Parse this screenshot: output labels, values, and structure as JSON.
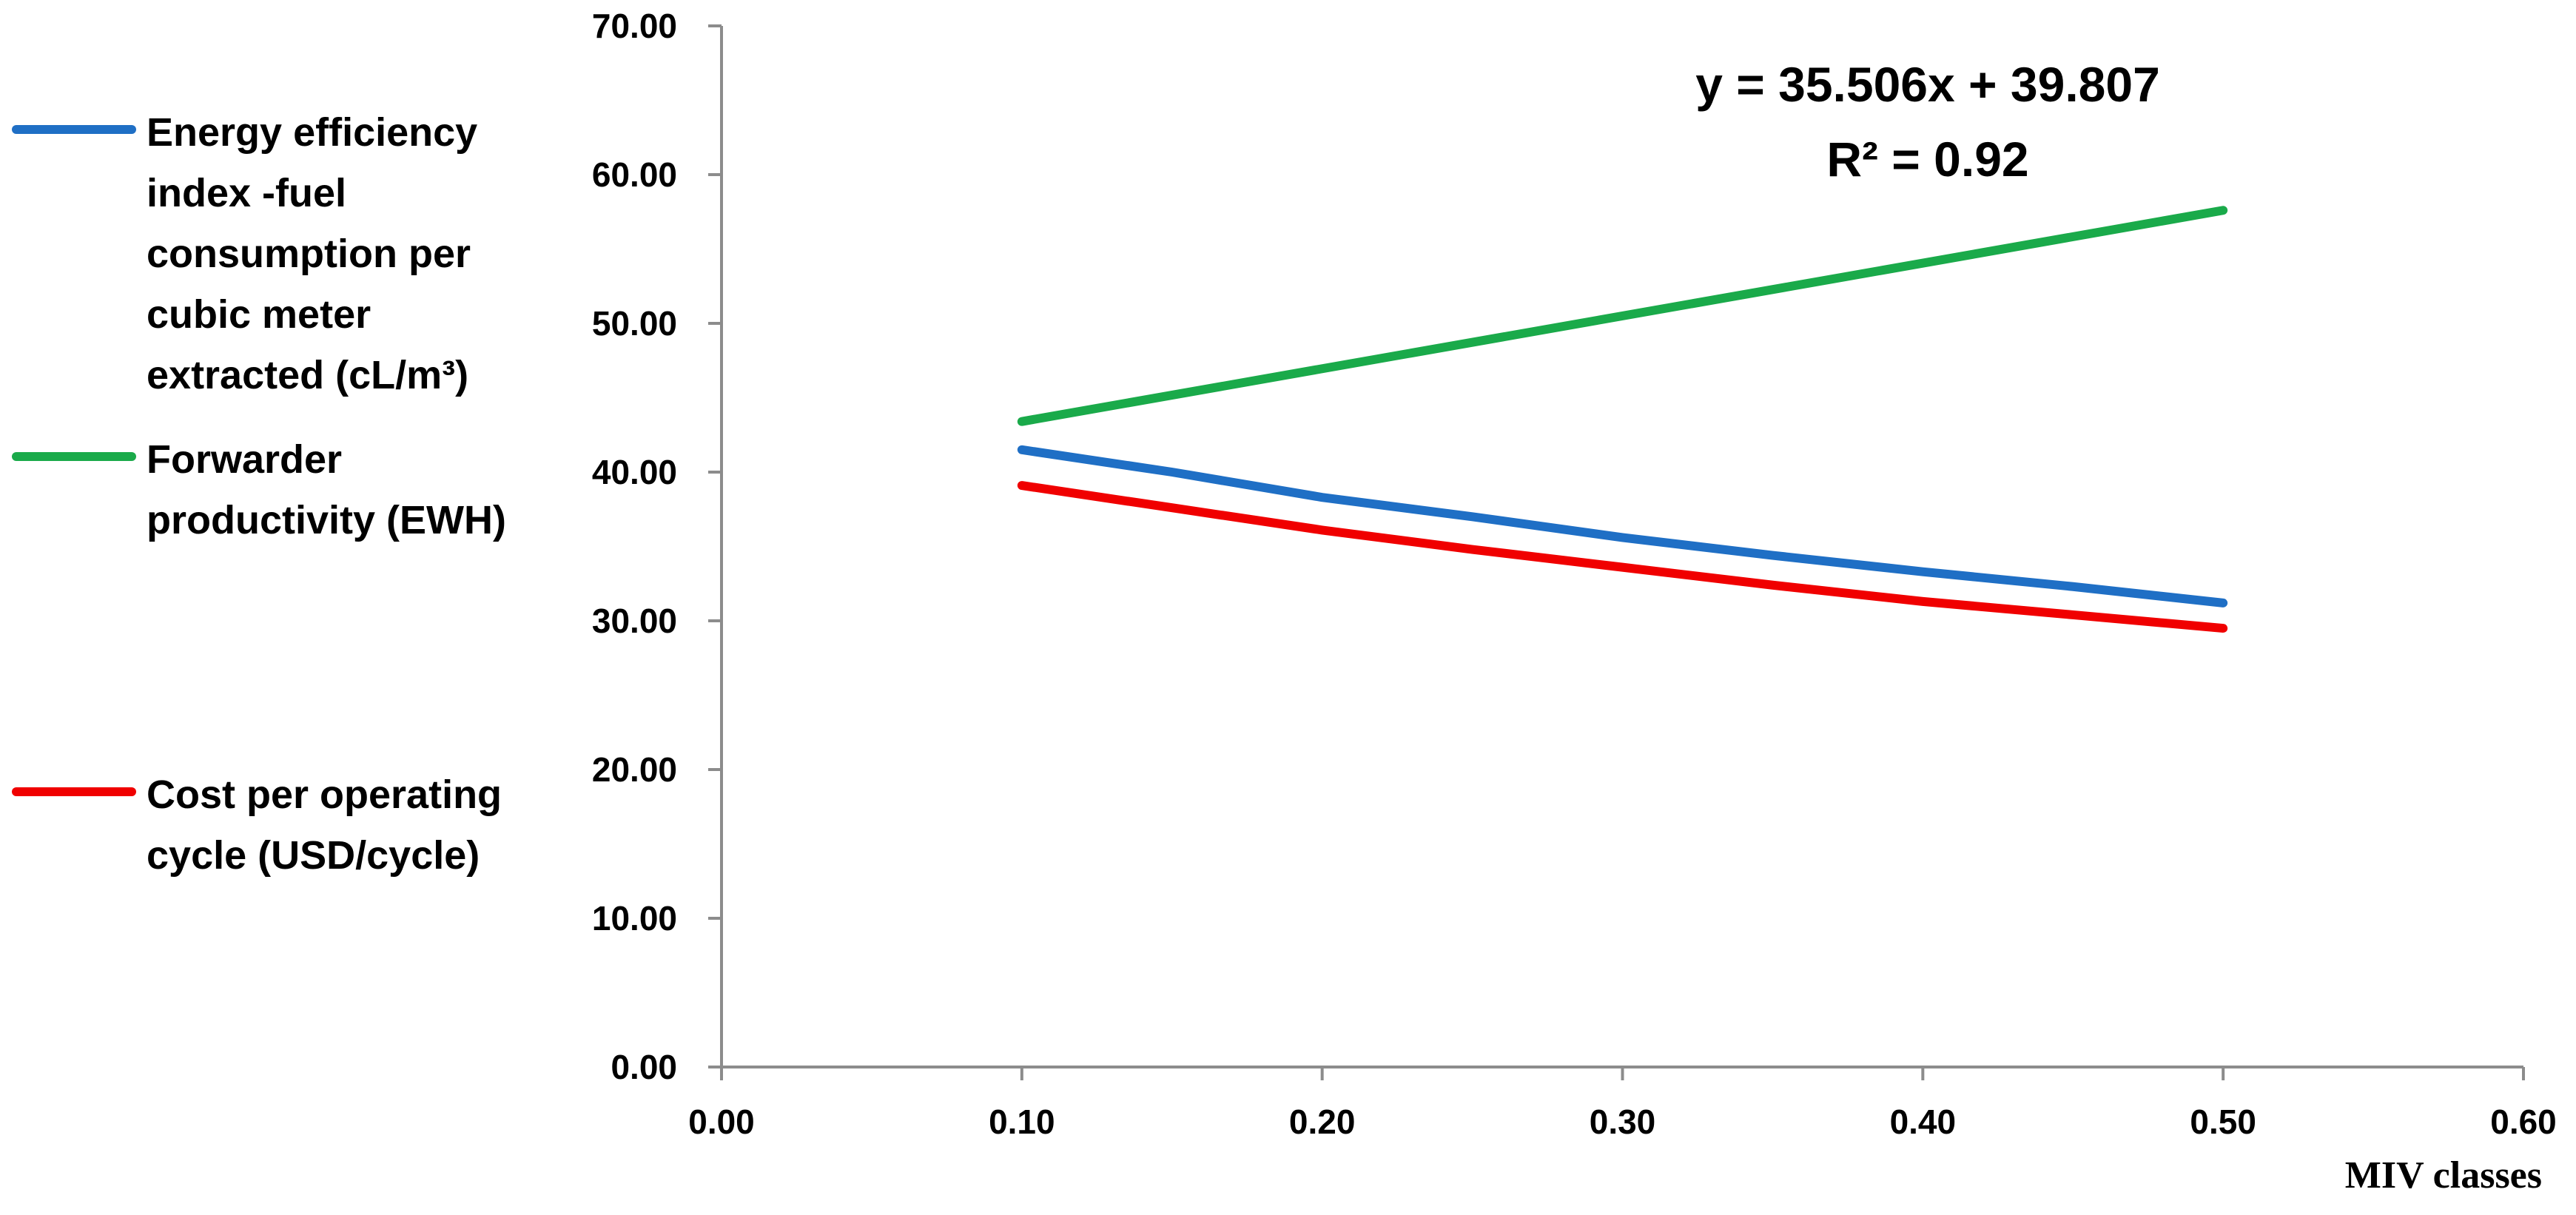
{
  "chart_data": {
    "type": "line",
    "title": "",
    "xlabel": "MIV classes",
    "ylabel": "",
    "xlim": [
      0,
      0.6
    ],
    "ylim": [
      0,
      70
    ],
    "x_ticks": [
      "0.00",
      "0.10",
      "0.20",
      "0.30",
      "0.40",
      "0.50",
      "0.60"
    ],
    "y_ticks": [
      "0.00",
      "10.00",
      "20.00",
      "30.00",
      "40.00",
      "50.00",
      "60.00",
      "70.00"
    ],
    "grid": false,
    "legend_position": "left",
    "series": [
      {
        "name": "Energy efficiency index -fuel consumption per cubic meter extracted (cL/m³)",
        "legend_lines": [
          "Energy efficiency",
          "index -fuel",
          "consumption per",
          "cubic meter",
          "extracted (cL/m³)"
        ],
        "color": "#1F6FC5",
        "x": [
          0.1,
          0.15,
          0.2,
          0.25,
          0.3,
          0.35,
          0.4,
          0.45,
          0.5
        ],
        "y": [
          41.5,
          40.0,
          38.3,
          37.0,
          35.6,
          34.4,
          33.3,
          32.3,
          31.2
        ]
      },
      {
        "name": "Forwarder productivity (EWH)",
        "legend_lines": [
          "Forwarder",
          "productivity (EWH)"
        ],
        "color": "#1AAA4A",
        "x": [
          0.1,
          0.5
        ],
        "y": [
          43.4,
          57.6
        ]
      },
      {
        "name": "Cost per operating cycle (USD/cycle)",
        "legend_lines": [
          "Cost per operating",
          "cycle (USD/cycle)"
        ],
        "color": "#F00000",
        "x": [
          0.1,
          0.15,
          0.2,
          0.25,
          0.3,
          0.35,
          0.4,
          0.45,
          0.5
        ],
        "y": [
          39.1,
          37.6,
          36.1,
          34.8,
          33.6,
          32.4,
          31.3,
          30.4,
          29.5
        ]
      }
    ],
    "annotations": [
      "y = 35.506x + 39.807",
      "R² = 0.92"
    ]
  }
}
